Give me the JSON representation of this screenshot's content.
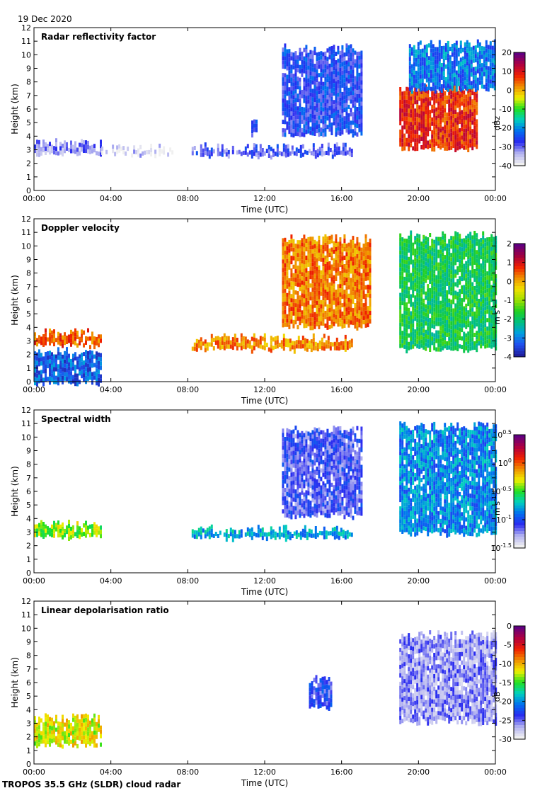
{
  "header": {
    "date": "19 Dec 2020"
  },
  "footer": {
    "instrument": "TROPOS 35.5 GHz (SLDR) cloud radar"
  },
  "colors": {
    "no_signal_gray": "#d3d3d3",
    "frame": "#000000"
  },
  "chart_data": [
    {
      "type": "heatmap",
      "title": "Radar reflectivity factor",
      "xlabel": "Time (UTC)",
      "ylabel": "Height (km)",
      "xlim": [
        0,
        24
      ],
      "ylim": [
        0,
        12
      ],
      "xticks": [
        "00:00",
        "04:00",
        "08:00",
        "12:00",
        "16:00",
        "20:00",
        "00:00"
      ],
      "yticks": [
        "0",
        "1",
        "2",
        "3",
        "4",
        "5",
        "6",
        "7",
        "8",
        "9",
        "10",
        "11",
        "12"
      ],
      "colorbar": {
        "label": "dBz",
        "min": -40,
        "max": 20,
        "ticks": [
          "20",
          "10",
          "0",
          "-10",
          "-20",
          "-30",
          "-40"
        ]
      },
      "features": [
        {
          "name": "low stratus layer",
          "t": [
            0,
            3.5
          ],
          "h": [
            2.8,
            3.5
          ],
          "value": 0.12
        },
        {
          "name": "low cloud band",
          "t": [
            3.5,
            7.2
          ],
          "h": [
            2.8,
            3.1
          ],
          "value": 0.05
        },
        {
          "name": "mid-level band",
          "t": [
            8.2,
            16.5
          ],
          "h": [
            2.7,
            3.2
          ],
          "value": 0.18
        },
        {
          "name": "cloud tower",
          "t": [
            11.3,
            11.6
          ],
          "h": [
            4.2,
            5.0
          ],
          "value": 0.2
        },
        {
          "name": "anvil cloud",
          "t": [
            12.9,
            17
          ],
          "h": [
            4.2,
            10.5
          ],
          "value": 0.22
        },
        {
          "name": "deep system core",
          "t": [
            19,
            23
          ],
          "h": [
            3.2,
            7.5
          ],
          "value": 0.8
        },
        {
          "name": "deep system upper",
          "t": [
            19.5,
            24
          ],
          "h": [
            7.5,
            10.8
          ],
          "value": 0.3
        }
      ]
    },
    {
      "type": "heatmap",
      "title": "Doppler velocity",
      "xlabel": "Time (UTC)",
      "ylabel": "Height (km)",
      "xlim": [
        0,
        24
      ],
      "ylim": [
        0,
        12
      ],
      "xticks": [
        "00:00",
        "04:00",
        "08:00",
        "12:00",
        "16:00",
        "20:00",
        "00:00"
      ],
      "yticks": [
        "0",
        "1",
        "2",
        "3",
        "4",
        "5",
        "6",
        "7",
        "8",
        "9",
        "10",
        "11",
        "12"
      ],
      "colorbar": {
        "label": "m s-1",
        "min": -4,
        "max": 2,
        "ticks": [
          "2",
          "1",
          "0",
          "-1",
          "-2",
          "-3",
          "-4"
        ]
      },
      "features": [
        {
          "name": "low stratus layer",
          "t": [
            0,
            3.5
          ],
          "h": [
            2.8,
            3.6
          ],
          "value": 0.75
        },
        {
          "name": "drizzle below",
          "t": [
            0,
            3.5
          ],
          "h": [
            0,
            2.2
          ],
          "value": 0.12
        },
        {
          "name": "mid-level band",
          "t": [
            8.2,
            16.5
          ],
          "h": [
            2.5,
            3.2
          ],
          "value": 0.7
        },
        {
          "name": "anvil cloud",
          "t": [
            12.9,
            17.5
          ],
          "h": [
            4.2,
            10.5
          ],
          "value": 0.72
        },
        {
          "name": "deep system",
          "t": [
            19,
            24
          ],
          "h": [
            2.5,
            10.8
          ],
          "value": 0.35
        }
      ]
    },
    {
      "type": "heatmap",
      "title": "Spectral width",
      "xlabel": "Time (UTC)",
      "ylabel": "Height (km)",
      "xlim": [
        0,
        24
      ],
      "ylim": [
        0,
        12
      ],
      "xticks": [
        "00:00",
        "04:00",
        "08:00",
        "12:00",
        "16:00",
        "20:00",
        "00:00"
      ],
      "yticks": [
        "0",
        "1",
        "2",
        "3",
        "4",
        "5",
        "6",
        "7",
        "8",
        "9",
        "10",
        "11",
        "12"
      ],
      "colorbar": {
        "label": "m s-1",
        "scale": "log",
        "min": -1.5,
        "max": 0.5,
        "ticks": [
          "10^0.5",
          "10^0",
          "10^-0.5",
          "10^-1",
          "10^-1.5"
        ]
      },
      "features": [
        {
          "name": "low stratus layer",
          "t": [
            0,
            3.5
          ],
          "h": [
            2.8,
            3.6
          ],
          "value": 0.55
        },
        {
          "name": "mid-level band",
          "t": [
            8.2,
            16.5
          ],
          "h": [
            2.7,
            3.2
          ],
          "value": 0.35
        },
        {
          "name": "anvil cloud",
          "t": [
            12.9,
            17
          ],
          "h": [
            4.2,
            10.5
          ],
          "value": 0.18
        },
        {
          "name": "deep system",
          "t": [
            19,
            24
          ],
          "h": [
            3,
            10.8
          ],
          "value": 0.32
        }
      ]
    },
    {
      "type": "heatmap",
      "title": "Linear depolarisation ratio",
      "xlabel": "Time (UTC)",
      "ylabel": "Height (km)",
      "xlim": [
        0,
        24
      ],
      "ylim": [
        0,
        12
      ],
      "xticks": [
        "00:00",
        "04:00",
        "08:00",
        "12:00",
        "16:00",
        "20:00",
        "00:00"
      ],
      "yticks": [
        "0",
        "1",
        "2",
        "3",
        "4",
        "5",
        "6",
        "7",
        "8",
        "9",
        "10",
        "11",
        "12"
      ],
      "colorbar": {
        "label": "dB",
        "min": -30,
        "max": 0,
        "ticks": [
          "0",
          "-5",
          "-10",
          "-15",
          "-20",
          "-25",
          "-30"
        ]
      },
      "features": [
        {
          "name": "low layer sparse",
          "t": [
            0,
            3.5
          ],
          "h": [
            1.5,
            3.4
          ],
          "value": 0.6
        },
        {
          "name": "anvil fragments",
          "t": [
            14.3,
            15.5
          ],
          "h": [
            4.3,
            6.2
          ],
          "value": 0.2
        },
        {
          "name": "deep system",
          "t": [
            19,
            24
          ],
          "h": [
            3.2,
            9.5
          ],
          "value": 0.12
        }
      ]
    }
  ]
}
